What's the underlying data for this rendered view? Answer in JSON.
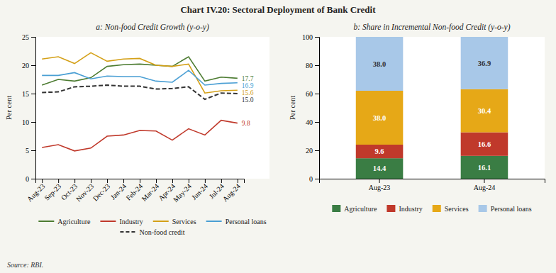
{
  "title": "Chart IV.20: Sectoral Deployment of Bank Credit",
  "annotations": [
    "Source: RBI."
  ],
  "chart_data": [
    {
      "type": "line",
      "title": "a: Non-food Credit Growth (y-o-y)",
      "y_label": "Per cent",
      "categories": [
        "Aug-23",
        "Sep-23",
        "Oct-23",
        "Nov-23",
        "Dec-23",
        "Jan-24",
        "Feb-24",
        "Mar-24",
        "Apr-24",
        "May-24",
        "Jun-24",
        "Jul-24",
        "Aug-24"
      ],
      "series": [
        {
          "name": "Agriculture",
          "color": "#4d7c32",
          "line_style": "solid",
          "values": [
            16.5,
            17.5,
            17.2,
            17.8,
            19.8,
            20.1,
            20.2,
            20.0,
            19.8,
            21.5,
            17.2,
            17.9,
            17.7
          ],
          "value_labels": [
            null,
            null,
            null,
            null,
            null,
            null,
            null,
            null,
            null,
            null,
            null,
            null,
            "17.7"
          ]
        },
        {
          "name": "Industry",
          "color": "#c0392b",
          "line_style": "solid",
          "values": [
            5.5,
            6.0,
            4.9,
            5.4,
            7.5,
            7.7,
            8.5,
            8.4,
            6.8,
            8.8,
            7.7,
            10.3,
            9.8
          ],
          "value_labels": [
            null,
            null,
            null,
            null,
            null,
            null,
            null,
            null,
            null,
            null,
            null,
            null,
            "9.8"
          ]
        },
        {
          "name": "Services",
          "color": "#d4a017",
          "line_style": "solid",
          "values": [
            21.1,
            21.5,
            20.3,
            22.2,
            20.7,
            21.1,
            21.2,
            20.0,
            19.8,
            20.2,
            15.1,
            15.5,
            15.6
          ],
          "value_labels": [
            null,
            null,
            null,
            null,
            null,
            null,
            null,
            null,
            null,
            null,
            null,
            null,
            "15.6"
          ]
        },
        {
          "name": "Personal loans",
          "color": "#4a9fd4",
          "line_style": "solid",
          "values": [
            18.2,
            18.2,
            18.7,
            17.6,
            18.1,
            18.0,
            18.0,
            17.2,
            17.0,
            19.1,
            16.5,
            16.8,
            16.9
          ],
          "value_labels": [
            null,
            null,
            null,
            null,
            null,
            null,
            null,
            null,
            null,
            null,
            null,
            null,
            "16.9"
          ]
        },
        {
          "name": "Non-food credit",
          "color": "#333333",
          "line_style": "dashed",
          "values": [
            15.2,
            15.3,
            16.2,
            16.3,
            16.5,
            16.3,
            16.3,
            15.8,
            15.9,
            16.2,
            14.0,
            15.1,
            15.0
          ],
          "value_labels": [
            null,
            null,
            null,
            null,
            null,
            null,
            null,
            null,
            null,
            null,
            null,
            null,
            "15.0"
          ]
        }
      ],
      "ylim": [
        0,
        25
      ],
      "yticks": [
        0,
        5,
        10,
        15,
        20,
        25
      ],
      "grid": false,
      "legend": "bottom"
    },
    {
      "type": "bar",
      "title": "b: Share in Incremental Non-food Credit (y-o-y)",
      "y_label": "Per cent",
      "stacked": true,
      "data_labels": true,
      "categories": [
        "Aug-23",
        "Aug-24"
      ],
      "series": [
        {
          "name": "Agriculture",
          "color": "#3a7d44",
          "values": [
            14.4,
            16.1
          ]
        },
        {
          "name": "Industry",
          "color": "#c0392b",
          "values": [
            9.6,
            16.6
          ]
        },
        {
          "name": "Services",
          "color": "#e6a817",
          "values": [
            38.0,
            30.4
          ],
          "value_labels": [
            "38.0",
            "30.4"
          ]
        },
        {
          "name": "Personal loans",
          "color": "#a8c8e8",
          "values": [
            38.0,
            36.9
          ],
          "value_labels": [
            "38.0",
            "36.9"
          ]
        }
      ],
      "ylim": [
        0,
        100
      ],
      "yticks": [
        0,
        20,
        40,
        60,
        80,
        100
      ],
      "grid": false,
      "legend": "bottom"
    }
  ]
}
